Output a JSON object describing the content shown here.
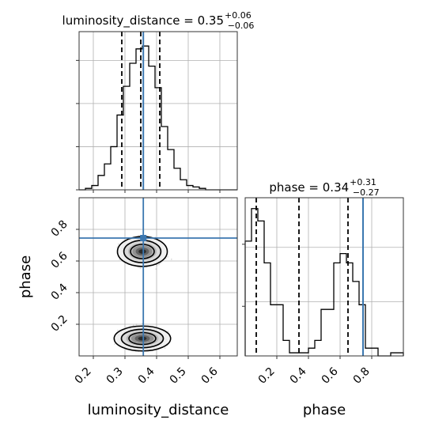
{
  "chart_data": {
    "type": "corner",
    "params": [
      "luminosity_distance",
      "phase"
    ],
    "titles": {
      "luminosity_distance": {
        "prefix": "luminosity_distance = 0.35",
        "sup": "+0.06",
        "sub": "−0.06"
      },
      "phase": {
        "prefix": "phase = 0.34",
        "sup": "+0.31",
        "sub": "−0.27"
      }
    },
    "axis_labels": {
      "x_bottom_left": "luminosity_distance",
      "x_bottom_right": "phase",
      "y_lower_left": "phase"
    },
    "ranges": {
      "luminosity_distance": [
        0.155,
        0.655
      ],
      "phase": [
        0.0,
        1.0
      ]
    },
    "ticks": {
      "luminosity_distance": [
        0.2,
        0.3,
        0.4,
        0.5,
        0.6
      ],
      "phase": [
        0.2,
        0.4,
        0.6,
        0.8
      ]
    },
    "tick_labels": {
      "luminosity_distance": [
        "0.2",
        "0.3",
        "0.4",
        "0.5",
        "0.6"
      ],
      "phase": [
        "0.2",
        "0.4",
        "0.6",
        "0.8"
      ]
    },
    "truth": {
      "luminosity_distance": 0.358,
      "phase": 0.745
    },
    "quantiles": {
      "luminosity_distance": [
        0.29,
        0.35,
        0.41
      ],
      "phase": [
        0.07,
        0.34,
        0.65
      ]
    },
    "hist_luminosity_distance": {
      "bin_edges": [
        0.155,
        0.175,
        0.195,
        0.215,
        0.235,
        0.255,
        0.275,
        0.295,
        0.315,
        0.335,
        0.355,
        0.375,
        0.395,
        0.415,
        0.435,
        0.455,
        0.475,
        0.495,
        0.515,
        0.535,
        0.555,
        0.575,
        0.595,
        0.615,
        0.635,
        0.655
      ],
      "counts": [
        0,
        0.01,
        0.03,
        0.1,
        0.18,
        0.3,
        0.52,
        0.72,
        0.88,
        0.98,
        1.0,
        0.86,
        0.71,
        0.44,
        0.28,
        0.15,
        0.07,
        0.03,
        0.02,
        0.01,
        0,
        0,
        0,
        0,
        0
      ],
      "ymax": 1.1
    },
    "hist_phase": {
      "bin_edges": [
        0.0,
        0.04,
        0.08,
        0.12,
        0.16,
        0.2,
        0.24,
        0.28,
        0.32,
        0.36,
        0.4,
        0.44,
        0.48,
        0.52,
        0.56,
        0.6,
        0.64,
        0.68,
        0.72,
        0.76,
        0.8,
        0.84,
        0.88,
        0.92,
        0.96,
        1.0
      ],
      "counts": [
        0.74,
        0.95,
        0.87,
        0.6,
        0.33,
        0.33,
        0.1,
        0.02,
        0.02,
        0.02,
        0.05,
        0.1,
        0.3,
        0.3,
        0.6,
        0.66,
        0.6,
        0.48,
        0.33,
        0.05,
        0.05,
        0.0,
        0.0,
        0.02,
        0.02
      ],
      "ymax": 1.02
    },
    "modes_2d": [
      {
        "x": 0.355,
        "y": 0.66,
        "rx": 0.075,
        "ry": 0.09
      },
      {
        "x": 0.355,
        "y": 0.11,
        "rx": 0.085,
        "ry": 0.075
      }
    ]
  }
}
